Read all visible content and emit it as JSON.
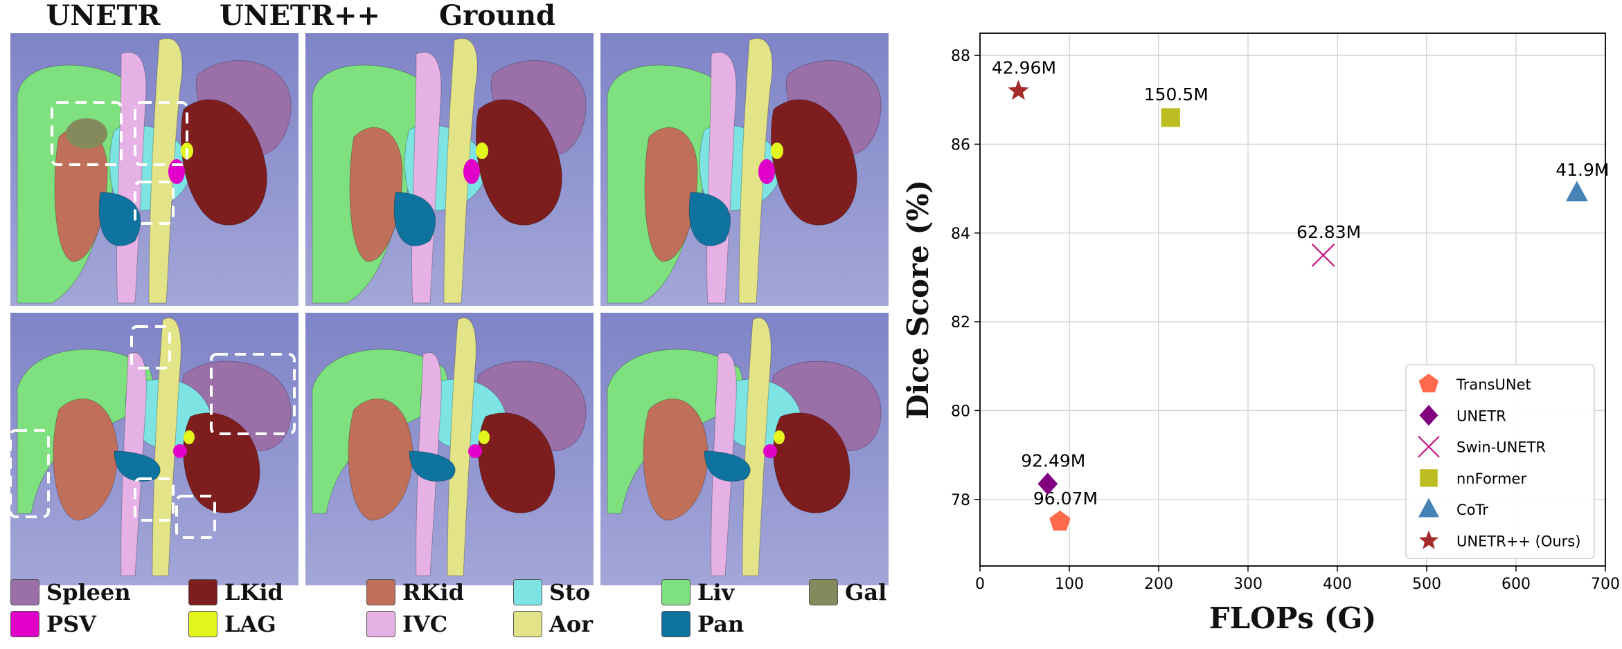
{
  "figure": {
    "column_titles": [
      "UNETR",
      "UNETR++",
      "Ground Truth"
    ],
    "organ_legend": [
      {
        "label": "Spleen",
        "color": "#9b6fa8"
      },
      {
        "label": "LKid",
        "color": "#7d1d1d"
      },
      {
        "label": "RKid",
        "color": "#c0705a"
      },
      {
        "label": "Sto",
        "color": "#7ee3e3"
      },
      {
        "label": "Liv",
        "color": "#7ee07e"
      },
      {
        "label": "Gal",
        "color": "#858a5c"
      },
      {
        "label": "PSV",
        "color": "#e000c8"
      },
      {
        "label": "LAG",
        "color": "#e4f51e"
      },
      {
        "label": "IVC",
        "color": "#e6b2e6"
      },
      {
        "label": "Aor",
        "color": "#e3e387"
      },
      {
        "label": "Pan",
        "color": "#0e739e"
      }
    ],
    "panel_background": "#8a8fcc"
  },
  "chart_data": {
    "type": "scatter",
    "xlabel": "FLOPs (G)",
    "ylabel": "Dice Score (%)",
    "xlim": [
      0,
      700
    ],
    "ylim": [
      76.5,
      88.5
    ],
    "xticks": [
      0,
      100,
      200,
      300,
      400,
      500,
      600,
      700
    ],
    "yticks": [
      78,
      80,
      82,
      84,
      86,
      88
    ],
    "grid": true,
    "legend_position": "lower-right",
    "points": [
      {
        "name": "TransUNet",
        "x": 89.5,
        "y": 77.5,
        "label": "96.07M",
        "marker": "pentagon",
        "color": "#ff6a4d"
      },
      {
        "name": "UNETR",
        "x": 75.8,
        "y": 78.35,
        "label": "92.49M",
        "marker": "diamond",
        "color": "#800080"
      },
      {
        "name": "Swin-UNETR",
        "x": 384.2,
        "y": 83.5,
        "label": "62.83M",
        "marker": "x",
        "color": "#c71585"
      },
      {
        "name": "nnFormer",
        "x": 213.4,
        "y": 86.6,
        "label": "150.5M",
        "marker": "square",
        "color": "#bcbd22"
      },
      {
        "name": "CoTr",
        "x": 668.1,
        "y": 84.9,
        "label": "41.9M",
        "marker": "triangle",
        "color": "#4682b4"
      },
      {
        "name": "UNETR++ (Ours)",
        "x": 43.0,
        "y": 87.2,
        "label": "42.96M",
        "marker": "star",
        "color": "#a52a2a"
      }
    ]
  }
}
